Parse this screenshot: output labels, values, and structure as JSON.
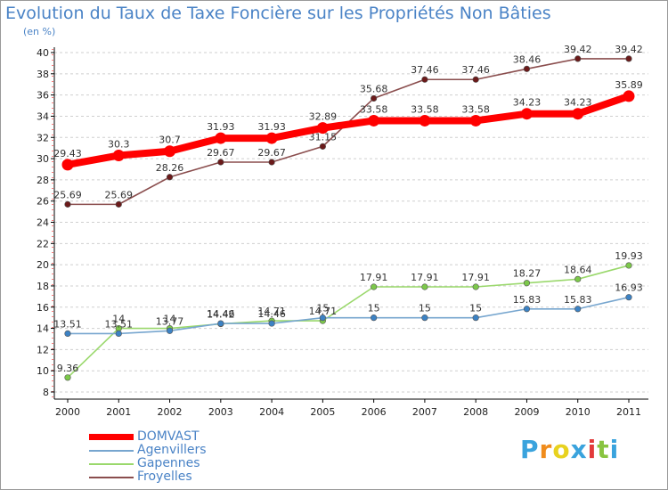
{
  "header": {
    "title": "Evolution du Taux de Taxe Foncière sur les Propriétés Non Bâties",
    "unit": "(en %)"
  },
  "logo": {
    "letters": [
      "P",
      "r",
      "o",
      "x",
      "i",
      "t",
      "i"
    ],
    "colors": [
      "#3aa3dd",
      "#f08c1c",
      "#e8d21f",
      "#3aa3dd",
      "#e23b3b",
      "#89c440",
      "#3aa3dd"
    ]
  },
  "chart_data": {
    "type": "line",
    "title": "Evolution du Taux de Taxe Foncière sur les Propriétés Non Bâties",
    "ylabel": "(en %)",
    "xlabel": "",
    "ylim": [
      8,
      40
    ],
    "yticks": [
      "8",
      "10",
      "12",
      "14",
      "16",
      "18",
      "20",
      "22",
      "24",
      "26",
      "28",
      "30",
      "32",
      "34",
      "36",
      "38",
      "40"
    ],
    "categories": [
      "2000",
      "2001",
      "2002",
      "2003",
      "2004",
      "2005",
      "2006",
      "2007",
      "2008",
      "2009",
      "2010",
      "2011"
    ],
    "legend_position": "bottom-left",
    "series": [
      {
        "name": "DOMVAST",
        "color": "#ff0000",
        "marker": "#ff0000",
        "width": "thick",
        "values": [
          29.43,
          30.3,
          30.7,
          31.93,
          31.93,
          32.89,
          33.58,
          33.58,
          33.58,
          34.23,
          34.23,
          35.89
        ],
        "labels": [
          "29.43",
          "30.3",
          "30.7",
          "31.93",
          "31.93",
          "32.89",
          "33.58",
          "33.58",
          "33.58",
          "34.23",
          "34.23",
          "35.89"
        ]
      },
      {
        "name": "Agenvillers",
        "color": "#77a6cf",
        "marker": "#3c82c4",
        "width": "thin",
        "values": [
          13.51,
          13.51,
          13.77,
          14.46,
          14.46,
          15,
          15,
          15,
          15,
          15.83,
          15.83,
          16.93
        ],
        "labels": [
          "13.51",
          "13.51",
          "13.77",
          "14.46",
          "14.46",
          "15",
          "15",
          "15",
          "15",
          "15.83",
          "15.83",
          "16.93"
        ]
      },
      {
        "name": "Gapennes",
        "color": "#9ad86c",
        "marker": "#7cc84a",
        "width": "thin",
        "values": [
          9.36,
          14,
          14,
          14.42,
          14.71,
          14.71,
          17.91,
          17.91,
          17.91,
          18.27,
          18.64,
          19.93
        ],
        "labels": [
          "9.36",
          "14",
          "14",
          "14.42",
          "14.71",
          "14.71",
          "17.91",
          "17.91",
          "17.91",
          "18.27",
          "18.64",
          "19.93"
        ]
      },
      {
        "name": "Froyelles",
        "color": "#8a4d4d",
        "marker": "#6b1a1a",
        "width": "thin",
        "values": [
          25.69,
          25.69,
          28.26,
          29.67,
          29.67,
          31.15,
          35.68,
          37.46,
          37.46,
          38.46,
          39.42,
          39.42
        ],
        "labels": [
          "25.69",
          "25.69",
          "28.26",
          "29.67",
          "29.67",
          "31.15",
          "35.68",
          "37.46",
          "37.46",
          "38.46",
          "39.42",
          "39.42"
        ]
      }
    ]
  }
}
